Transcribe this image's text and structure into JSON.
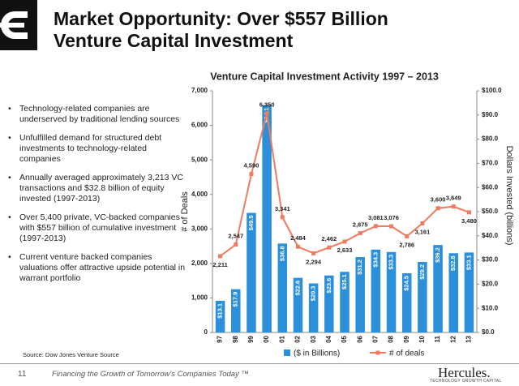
{
  "header": {
    "title_line1": "Market Opportunity: Over $557 Billion",
    "title_line2": "Venture Capital Investment"
  },
  "bullets": [
    "Technology-related companies are underserved by traditional lending sources",
    "Unfulfilled demand for structured debt investments to technology-related companies",
    "Annually averaged approximately 3,213 VC transactions and $32.8 billion of equity invested (1997-2013)",
    "Over 5,400 private, VC-backed companies with $557 billion of cumulative investment (1997-2013)",
    "Current venture backed companies valuations offer attractive upside potential in warrant portfolio"
  ],
  "source": "Source: Dow Jones Venture Source",
  "footer": {
    "page": "11",
    "tagline": "Financing the Growth of Tomorrow's Companies Today ™",
    "brand": "Hercules.",
    "brand_sub": "TECHNOLOGY GROWTH CAPITAL"
  },
  "chart_data": {
    "type": "bar-line",
    "title": "Venture Capital Investment Activity 1997 – 2013",
    "y_label": "# of Deals",
    "y2_label": "Dollars Invested (billions)",
    "categories": [
      "97",
      "98",
      "99",
      "00",
      "01",
      "02",
      "03",
      "04",
      "05",
      "06",
      "07",
      "08",
      "09",
      "10",
      "11",
      "12",
      "13"
    ],
    "series": [
      {
        "name": "($ in Billions)",
        "type": "bar",
        "axis": "y2",
        "color": "#2b8fd9",
        "values": [
          13.1,
          17.9,
          49.5,
          94.1,
          36.8,
          22.6,
          20.3,
          23.6,
          25.1,
          31.2,
          34.3,
          33.3,
          24.5,
          29.2,
          36.2,
          32.8,
          33.1
        ],
        "value_labels": [
          "$13.1",
          "$17.9",
          "$49.5",
          "$94.1",
          "$36.8",
          "$22.6",
          "$20.3",
          "$23.6",
          "$25.1",
          "$31.2",
          "$34.3",
          "$33.3",
          "$24.5",
          "$29.2",
          "$36.2",
          "$32.8",
          "$33.1"
        ]
      },
      {
        "name": "# of deals",
        "type": "line",
        "axis": "y",
        "color": "#f07b5e",
        "values": [
          2211,
          2547,
          4590,
          6350,
          3341,
          2484,
          2294,
          2462,
          2633,
          2875,
          3081,
          3076,
          2786,
          3161,
          3600,
          3649,
          3480
        ],
        "value_labels": [
          "2,211",
          "2,547",
          "4,590",
          "6,350",
          "3,341",
          "2,484",
          "2,294",
          "2,462",
          "2,633",
          "2,875",
          "3,081",
          "3,076",
          "2,786",
          "3,161",
          "3,600",
          "3,649",
          "3,480"
        ]
      }
    ],
    "ylim": [
      0,
      7000
    ],
    "yticks": [
      0,
      {
        "value": 1000,
        "label": "1,000"
      },
      {
        "value": 2000,
        "label": "2,000"
      },
      {
        "value": 3000,
        "label": "3,000"
      },
      {
        "value": 4000,
        "label": "4,000"
      },
      {
        "value": 5000,
        "label": "5,000"
      },
      {
        "value": 6000,
        "label": "6,000"
      },
      {
        "value": 7000,
        "label": "7,000"
      }
    ],
    "y2lim": [
      0,
      100
    ],
    "y2ticks": [
      {
        "value": 0,
        "label": "$0.0"
      },
      {
        "value": 10,
        "label": "$10.0"
      },
      {
        "value": 20,
        "label": "$20.0"
      },
      {
        "value": 30,
        "label": "$30.0"
      },
      {
        "value": 40,
        "label": "$40.0"
      },
      {
        "value": 50,
        "label": "$50.0"
      },
      {
        "value": 60,
        "label": "$60.0"
      },
      {
        "value": 70,
        "label": "$70.0"
      },
      {
        "value": 80,
        "label": "$80.0"
      },
      {
        "value": 90,
        "label": "$90.0"
      },
      {
        "value": 100,
        "label": "$100.0"
      }
    ],
    "legend": "bottom"
  }
}
